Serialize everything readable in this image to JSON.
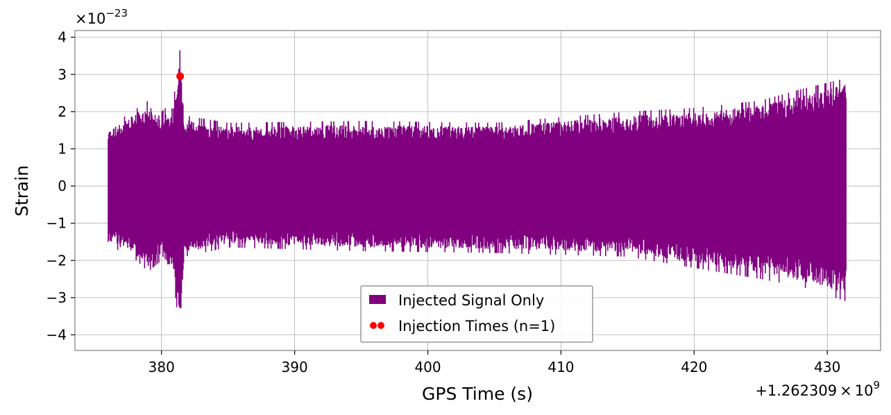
{
  "chart_data": {
    "type": "line",
    "xlabel": "GPS Time (s)",
    "ylabel": "Strain",
    "x_offset_label": "+1.262309",
    "x_offset_times": "×",
    "x_offset_base": "10",
    "x_offset_exp": "9",
    "y_scale_prefix": "×10",
    "y_scale_exp": "−23",
    "xlim": [
      373.5,
      434
    ],
    "ylim": [
      -4.42,
      4.18
    ],
    "x_ticks": [
      380,
      390,
      400,
      410,
      420,
      430
    ],
    "x_tick_labels": [
      "380",
      "390",
      "400",
      "410",
      "420",
      "430"
    ],
    "y_ticks": [
      -4,
      -3,
      -2,
      -1,
      0,
      1,
      2,
      3,
      4
    ],
    "y_tick_labels": [
      "−4",
      "−3",
      "−2",
      "−1",
      "0",
      "1",
      "2",
      "3",
      "4"
    ],
    "grid": true,
    "legend_position": "lower-center",
    "series": [
      {
        "name": "Injected Signal Only",
        "color": "#800080",
        "x_range": [
          376.0,
          431.4
        ],
        "envelope_top": [
          [
            376.0,
            1.6
          ],
          [
            377.8,
            2.0
          ],
          [
            379.0,
            2.3
          ],
          [
            380.0,
            2.0
          ],
          [
            380.9,
            2.3
          ],
          [
            381.4,
            3.7
          ],
          [
            381.7,
            1.9
          ],
          [
            385.0,
            1.7
          ],
          [
            395.0,
            1.75
          ],
          [
            405.0,
            1.7
          ],
          [
            415.0,
            2.0
          ],
          [
            420.0,
            2.1
          ],
          [
            425.0,
            2.3
          ],
          [
            428.0,
            2.6
          ],
          [
            431.4,
            2.9
          ]
        ],
        "envelope_bottom": [
          [
            376.0,
            -1.6
          ],
          [
            377.8,
            -1.9
          ],
          [
            379.0,
            -2.3
          ],
          [
            380.0,
            -2.0
          ],
          [
            380.9,
            -2.5
          ],
          [
            381.4,
            -4.05
          ],
          [
            381.7,
            -1.9
          ],
          [
            385.0,
            -1.65
          ],
          [
            395.0,
            -1.75
          ],
          [
            405.0,
            -1.8
          ],
          [
            415.0,
            -1.9
          ],
          [
            420.0,
            -2.2
          ],
          [
            425.0,
            -2.5
          ],
          [
            428.0,
            -2.7
          ],
          [
            431.4,
            -3.1
          ]
        ]
      },
      {
        "name": "Injection Times (n=1)",
        "color": "#ff0000",
        "points": [
          [
            381.4,
            2.95
          ]
        ]
      }
    ]
  }
}
